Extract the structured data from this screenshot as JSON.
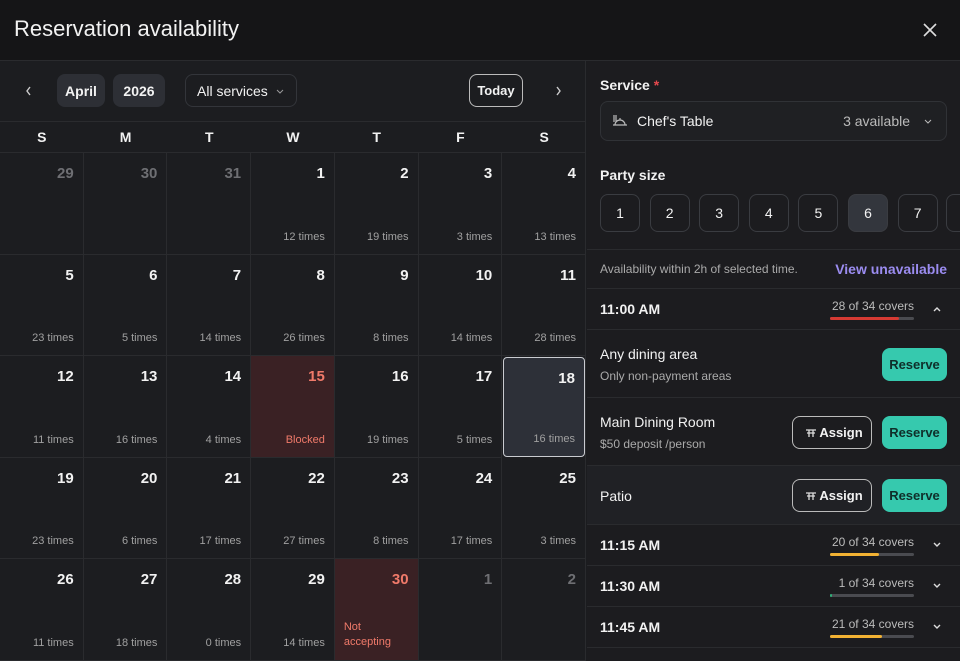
{
  "header": {
    "title": "Reservation availability"
  },
  "calendar": {
    "month": "April",
    "year": "2026",
    "filter": "All services",
    "today_button": "Today",
    "weekdays": [
      "S",
      "M",
      "T",
      "W",
      "T",
      "F",
      "S"
    ],
    "weeks": [
      [
        {
          "day": 29,
          "status": "muted"
        },
        {
          "day": 30,
          "status": "muted"
        },
        {
          "day": 31,
          "status": "muted"
        },
        {
          "day": 1,
          "note": "12 times"
        },
        {
          "day": 2,
          "note": "19 times"
        },
        {
          "day": 3,
          "note": "3 times"
        },
        {
          "day": 4,
          "note": "13 times"
        }
      ],
      [
        {
          "day": 5,
          "note": "23 times"
        },
        {
          "day": 6,
          "note": "5 times"
        },
        {
          "day": 7,
          "note": "14 times"
        },
        {
          "day": 8,
          "note": "26 times"
        },
        {
          "day": 9,
          "note": "8 times"
        },
        {
          "day": 10,
          "note": "14 times"
        },
        {
          "day": 11,
          "note": "28 times"
        }
      ],
      [
        {
          "day": 12,
          "note": "11 times"
        },
        {
          "day": 13,
          "note": "16 times"
        },
        {
          "day": 14,
          "note": "4 times"
        },
        {
          "day": 15,
          "note": "Blocked",
          "status": "blocked"
        },
        {
          "day": 16,
          "note": "19 times"
        },
        {
          "day": 17,
          "note": "5 times"
        },
        {
          "day": 18,
          "note": "16 times",
          "status": "selected"
        }
      ],
      [
        {
          "day": 19,
          "note": "23 times"
        },
        {
          "day": 20,
          "note": "6 times"
        },
        {
          "day": 21,
          "note": "17 times"
        },
        {
          "day": 22,
          "note": "27 times"
        },
        {
          "day": 23,
          "note": "8 times"
        },
        {
          "day": 24,
          "note": "17 times"
        },
        {
          "day": 25,
          "note": "3 times"
        }
      ],
      [
        {
          "day": 26,
          "note": "11 times"
        },
        {
          "day": 27,
          "note": "18 times"
        },
        {
          "day": 28,
          "note": "0 times"
        },
        {
          "day": 29,
          "note": "14 times"
        },
        {
          "day": 30,
          "note": "Not accepting",
          "status": "closed"
        },
        {
          "day": 1,
          "status": "muted"
        },
        {
          "day": 2,
          "status": "muted"
        }
      ]
    ]
  },
  "service": {
    "label": "Service",
    "required_mark": "*",
    "selected": "Chef's Table",
    "availability": "3 available"
  },
  "party": {
    "label": "Party size",
    "options": [
      "1",
      "2",
      "3",
      "4",
      "5",
      "6",
      "7"
    ],
    "selected_index": 5
  },
  "availability": {
    "note": "Availability within 2h of selected time.",
    "link": "View unavailable"
  },
  "slots": [
    {
      "time": "11:00 AM",
      "covers_label": "28 of 34 covers",
      "booked": 28,
      "capacity": 34,
      "color": "#d63a33",
      "expanded": true,
      "areas": [
        {
          "name": "Any dining area",
          "detail": "Only non-payment areas",
          "buttons": [
            "Reserve"
          ]
        },
        {
          "name": "Main Dining Room",
          "detail": "$50 deposit /person",
          "buttons": [
            "Assign",
            "Reserve"
          ]
        },
        {
          "name": "Patio",
          "buttons": [
            "Assign",
            "Reserve"
          ]
        }
      ]
    },
    {
      "time": "11:15 AM",
      "covers_label": "20 of 34 covers",
      "booked": 20,
      "capacity": 34,
      "color": "#f2b233"
    },
    {
      "time": "11:30 AM",
      "covers_label": "1 of 34 covers",
      "booked": 1,
      "capacity": 34,
      "color": "#2fae77"
    },
    {
      "time": "11:45 AM",
      "covers_label": "21 of 34 covers",
      "booked": 21,
      "capacity": 34,
      "color": "#f2b233"
    }
  ]
}
